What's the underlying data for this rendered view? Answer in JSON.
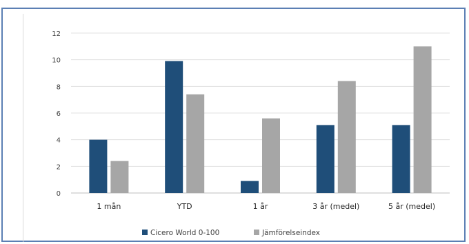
{
  "chart_data": {
    "type": "bar",
    "title": "",
    "xlabel": "",
    "ylabel": "",
    "categories": [
      "1 mån",
      "YTD",
      "1 år",
      "3 år (medel)",
      "5 år (medel)"
    ],
    "series": [
      {
        "name": "Cicero World 0-100",
        "values": [
          4.0,
          9.9,
          0.9,
          5.1,
          5.1
        ],
        "color": "#1f4e79"
      },
      {
        "name": "Jämförelseindex",
        "values": [
          2.4,
          7.4,
          5.6,
          8.4,
          11.0
        ],
        "color": "#a6a6a6"
      }
    ],
    "ylim": [
      0,
      12
    ],
    "yticks": [
      0,
      2,
      4,
      6,
      8,
      10,
      12
    ],
    "grid": true,
    "legend": "bottom"
  }
}
